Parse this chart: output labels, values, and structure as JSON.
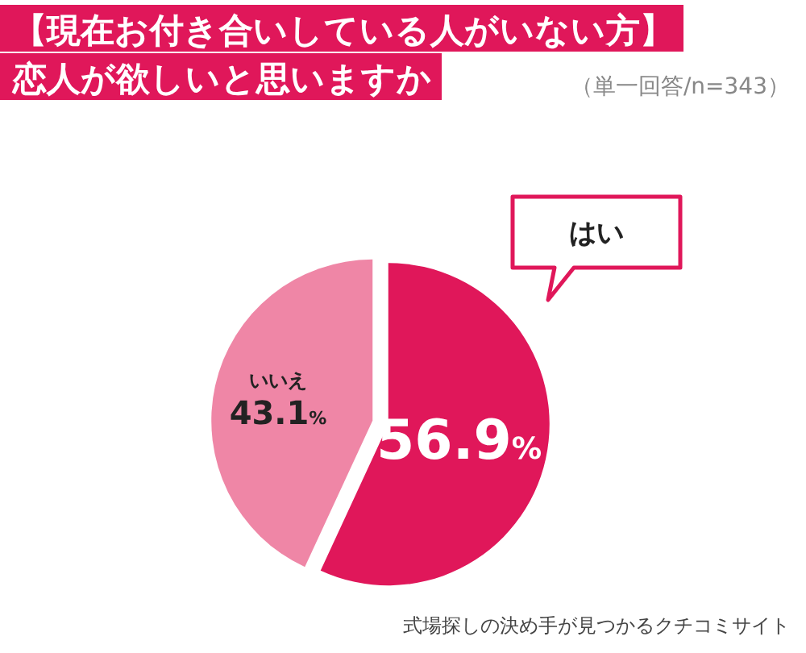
{
  "chart_data": {
    "type": "pie",
    "title": "【現在お付き合いしている人がいない方】",
    "subtitle": "恋人が欲しいと思いますか",
    "categories": [
      "はい",
      "いいえ"
    ],
    "values": [
      56.9,
      43.1
    ],
    "colors": [
      "#e0175a",
      "#ef86a6"
    ],
    "value_labels": [
      "56.9%",
      "43.1%"
    ],
    "annotations": [
      "（単一回答/n=343）",
      "式場探しの決め手が見つかるクチコミサイト"
    ]
  }
}
